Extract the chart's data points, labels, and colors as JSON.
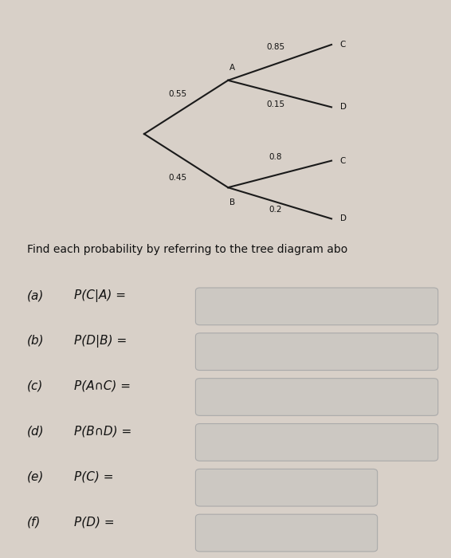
{
  "background_color": "#d8d0c8",
  "tree_box_bg": "#d0c8c0",
  "tree_box_edge": "#999999",
  "prob_A": "0.55",
  "prob_B": "0.45",
  "prob_C_given_A": "0.85",
  "prob_D_given_A": "0.15",
  "prob_C_given_B": "0.8",
  "prob_D_given_B": "0.2",
  "label_A": "A",
  "label_B": "B",
  "label_C": "C",
  "label_D": "D",
  "instruction_text": "Find each probability by referring to the tree diagram abo",
  "questions": [
    {
      "label": "(a)",
      "math": "P(C|A) ="
    },
    {
      "label": "(b)",
      "math": "P(D|B) ="
    },
    {
      "label": "(c)",
      "math": "P(A∩C) ="
    },
    {
      "label": "(d)",
      "math": "P(B∩D) ="
    },
    {
      "label": "(e)",
      "math": "P(C) ="
    },
    {
      "label": "(f)",
      "math": "P(D) ="
    }
  ],
  "line_color": "#1a1a1a",
  "text_color": "#111111",
  "box_fill": "#ccc8c2",
  "box_edge_color": "#aaaaaa",
  "left_bar_color": "#8b1a1a",
  "left_bar_width": 0.04
}
